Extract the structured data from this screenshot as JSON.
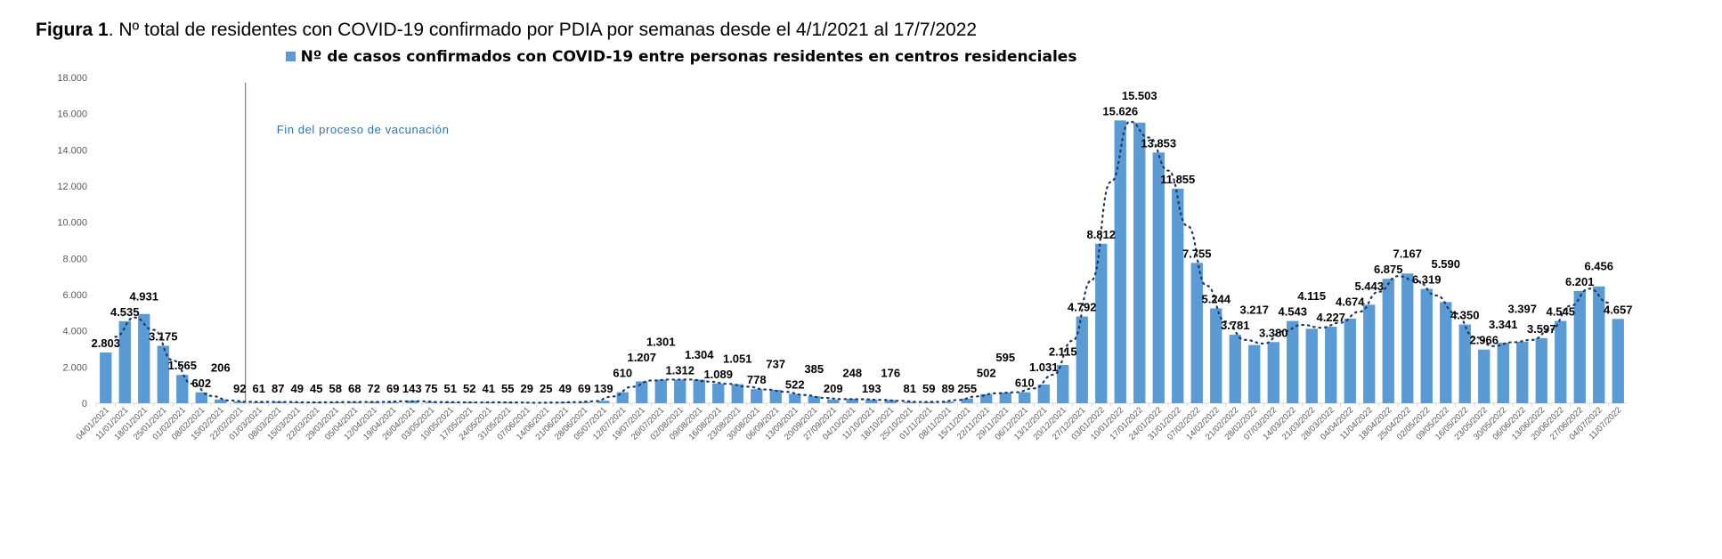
{
  "title": {
    "bold": "Figura 1",
    "rest": ". Nº total de residentes con COVID-19 confirmado por PDIA por semanas desde el 4/1/2021 al 17/7/2022"
  },
  "colors": {
    "bar": "#5b9bd5",
    "trend": "#1f3864",
    "annotation": "#2e75b6"
  },
  "chart_data": {
    "type": "bar",
    "legend": {
      "label": "Nº de casos confirmados con COVID-19 entre personas residentes en centros residenciales",
      "placement": "top"
    },
    "annotation": {
      "text": "Fin del proceso de vacunación",
      "at_category": "01/03/2021"
    },
    "trendline": "dotted moving average",
    "ylim": [
      0,
      18000
    ],
    "yticks": [
      "0",
      "2.000",
      "4.000",
      "6.000",
      "8.000",
      "10.000",
      "12.000",
      "14.000",
      "16.000",
      "18.000"
    ],
    "categories": [
      "04/01/2021",
      "11/01/2021",
      "18/01/2021",
      "25/01/2021",
      "01/02/2021",
      "08/02/2021",
      "15/02/2021",
      "22/02/2021",
      "01/03/2021",
      "08/03/2021",
      "15/03/2021",
      "22/03/2021",
      "29/03/2021",
      "05/04/2021",
      "12/04/2021",
      "19/04/2021",
      "26/04/2021",
      "03/05/2021",
      "10/05/2021",
      "17/05/2021",
      "24/05/2021",
      "31/05/2021",
      "07/06/2021",
      "14/06/2021",
      "21/06/2021",
      "28/06/2021",
      "05/07/2021",
      "12/07/2021",
      "19/07/2021",
      "26/07/2021",
      "02/08/2021",
      "09/08/2021",
      "16/08/2021",
      "23/08/2021",
      "30/08/2021",
      "06/09/2021",
      "13/09/2021",
      "20/09/2021",
      "27/09/2021",
      "04/10/2021",
      "11/10/2021",
      "18/10/2021",
      "25/10/2021",
      "01/11/2021",
      "08/11/2021",
      "15/11/2021",
      "22/11/2021",
      "29/11/2021",
      "06/12/2021",
      "13/12/2021",
      "20/12/2021",
      "27/12/2021",
      "03/01/2022",
      "10/01/2022",
      "17/01/2022",
      "24/01/2022",
      "31/01/2022",
      "07/02/2022",
      "14/02/2022",
      "21/02/2022",
      "28/02/2022",
      "07/03/2022",
      "14/03/2022",
      "21/03/2022",
      "28/03/2022",
      "04/04/2022",
      "11/04/2022",
      "18/04/2022",
      "25/04/2022",
      "02/05/2022",
      "09/05/2022",
      "16/05/2022",
      "23/05/2022",
      "30/05/2022",
      "06/06/2022",
      "13/06/2022",
      "20/06/2022",
      "27/06/2022",
      "04/07/2022",
      "11/07/2022"
    ],
    "values": [
      2803,
      4535,
      4931,
      3175,
      1565,
      602,
      206,
      92,
      61,
      87,
      49,
      45,
      58,
      68,
      72,
      69,
      143,
      75,
      51,
      52,
      41,
      55,
      29,
      25,
      49,
      69,
      139,
      610,
      1207,
      1301,
      1312,
      1304,
      1089,
      1051,
      778,
      737,
      522,
      385,
      209,
      248,
      193,
      176,
      81,
      59,
      89,
      255,
      502,
      595,
      610,
      1031,
      2115,
      4792,
      8812,
      15626,
      15503,
      13853,
      11855,
      7755,
      5244,
      3781,
      3217,
      3380,
      4543,
      4115,
      4227,
      4674,
      5443,
      6875,
      7167,
      6319,
      5590,
      4350,
      2966,
      3341,
      3397,
      3597,
      4545,
      6201,
      6456,
      4657
    ],
    "labels": [
      "2.803",
      "4.535",
      "4.931",
      "3.175",
      "1.565",
      "602",
      "206",
      "92",
      "61",
      "87",
      "49",
      "45",
      "58",
      "68",
      "72",
      "69",
      "143",
      "75",
      "51",
      "52",
      "41",
      "55",
      "29",
      "25",
      "49",
      "69",
      "139",
      "610",
      "1.207",
      "1.301",
      "1.312",
      "1.304",
      "1.089",
      "1.051",
      "778",
      "737",
      "522",
      "385",
      "209",
      "248",
      "193",
      "176",
      "81",
      "59",
      "89",
      "255",
      "502",
      "595",
      "610",
      "1.031",
      "2.115",
      "4.792",
      "8.812",
      "15.626",
      "15.503",
      "13.853",
      "11.855",
      "7.755",
      "5.244",
      "3.781",
      "3.217",
      "3.380",
      "4.543",
      "4.115",
      "4.227",
      "4.674",
      "5.443",
      "6.875",
      "7.167",
      "6.319",
      "5.590",
      "4.350",
      "2.966",
      "3.341",
      "3.397",
      "3.597",
      "4.545",
      "6.201",
      "6.456",
      "4.657"
    ]
  }
}
